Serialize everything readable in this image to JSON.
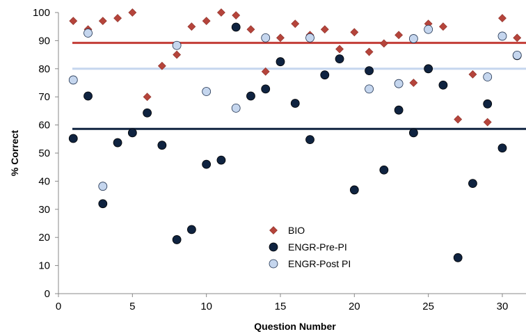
{
  "chart_data": {
    "type": "scatter",
    "xlabel": "Question Number",
    "ylabel": "% Correct",
    "xlim": [
      0,
      31.6
    ],
    "ylim": [
      0,
      100
    ],
    "xticks": [
      0,
      5,
      10,
      15,
      20,
      25,
      30
    ],
    "yticks": [
      0,
      10,
      20,
      30,
      40,
      50,
      60,
      70,
      80,
      90,
      100
    ],
    "grid": false,
    "legend_position": "lower-center",
    "series": [
      {
        "name": "BIO",
        "marker": "diamond",
        "color": "#b5443b",
        "points": [
          [
            1,
            97
          ],
          [
            2,
            94
          ],
          [
            3,
            97
          ],
          [
            4,
            98
          ],
          [
            5,
            100
          ],
          [
            6,
            70
          ],
          [
            7,
            81
          ],
          [
            8,
            85
          ],
          [
            9,
            95
          ],
          [
            10,
            97
          ],
          [
            11,
            100
          ],
          [
            12,
            99
          ],
          [
            13,
            94
          ],
          [
            14,
            79
          ],
          [
            15,
            91
          ],
          [
            16,
            96
          ],
          [
            17,
            92
          ],
          [
            18,
            94
          ],
          [
            19,
            87
          ],
          [
            20,
            93
          ],
          [
            21,
            86
          ],
          [
            22,
            89
          ],
          [
            23,
            92
          ],
          [
            24,
            75
          ],
          [
            25,
            96
          ],
          [
            26,
            95
          ],
          [
            27,
            62
          ],
          [
            28,
            78
          ],
          [
            29,
            61
          ],
          [
            30,
            98
          ],
          [
            31,
            91
          ]
        ]
      },
      {
        "name": "ENGR-Pre-PI",
        "marker": "circle",
        "color": "#0f2340",
        "points": [
          [
            1,
            55.2
          ],
          [
            2,
            70.3
          ],
          [
            3,
            32
          ],
          [
            4,
            53.7
          ],
          [
            5,
            57.2
          ],
          [
            6,
            64.3
          ],
          [
            7,
            52.8
          ],
          [
            8,
            19.2
          ],
          [
            9,
            22.8
          ],
          [
            10,
            46
          ],
          [
            11,
            47.5
          ],
          [
            12,
            94.8
          ],
          [
            13,
            70.3
          ],
          [
            14,
            72.8
          ],
          [
            15,
            82.5
          ],
          [
            16,
            67.7
          ],
          [
            17,
            54.8
          ],
          [
            18,
            77.8
          ],
          [
            19,
            83.5
          ],
          [
            20,
            36.9
          ],
          [
            21,
            79.3
          ],
          [
            22,
            44
          ],
          [
            23,
            65.3
          ],
          [
            24,
            57.2
          ],
          [
            25,
            80
          ],
          [
            26,
            74.2
          ],
          [
            27,
            12.8
          ],
          [
            28,
            39.2
          ],
          [
            29,
            67.5
          ],
          [
            30,
            51.8
          ],
          [
            31,
            84.7
          ]
        ]
      },
      {
        "name": "ENGR-Post PI",
        "marker": "circle",
        "color": "#c5d6ee",
        "points": [
          [
            1,
            76
          ],
          [
            2,
            92.7
          ],
          [
            3,
            38.2
          ],
          [
            8,
            88.3
          ],
          [
            10,
            71.9
          ],
          [
            12,
            66
          ],
          [
            14,
            91
          ],
          [
            17,
            91
          ],
          [
            21,
            72.8
          ],
          [
            23,
            74.7
          ],
          [
            24,
            90.7
          ],
          [
            25,
            94
          ],
          [
            29,
            77.1
          ],
          [
            30,
            91.6
          ],
          [
            31,
            84.8
          ]
        ]
      }
    ],
    "reference_lines": [
      {
        "y": 89.2,
        "color": "#c23b35"
      },
      {
        "y": 80,
        "color": "#c5d6ee"
      },
      {
        "y": 58.6,
        "color": "#0f2340"
      }
    ]
  }
}
